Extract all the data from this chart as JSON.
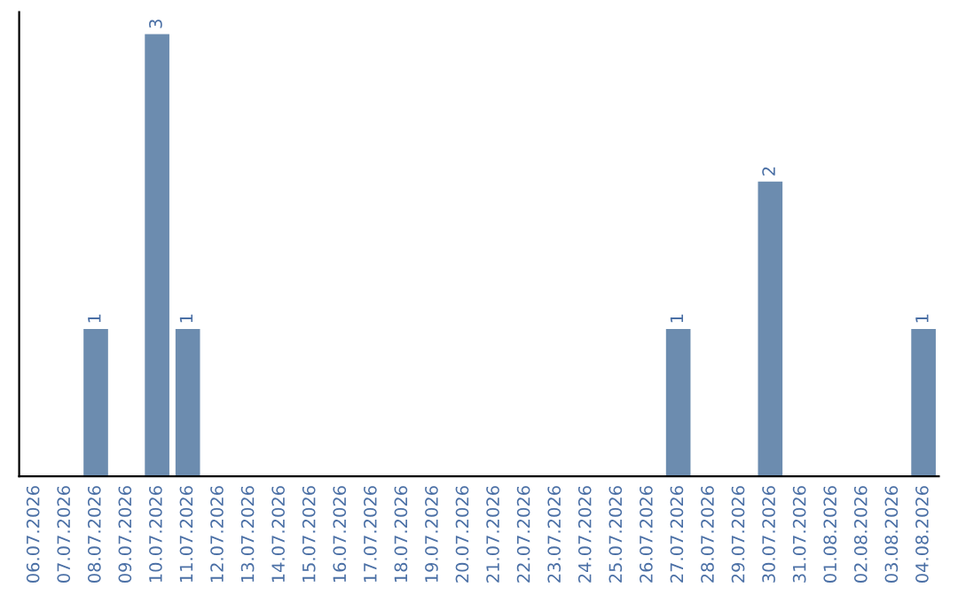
{
  "chart_data": {
    "type": "bar",
    "categories": [
      "06.07.2026",
      "07.07.2026",
      "08.07.2026",
      "09.07.2026",
      "10.07.2026",
      "11.07.2026",
      "12.07.2026",
      "13.07.2026",
      "14.07.2026",
      "15.07.2026",
      "16.07.2026",
      "17.07.2026",
      "18.07.2026",
      "19.07.2026",
      "20.07.2026",
      "21.07.2026",
      "22.07.2026",
      "23.07.2026",
      "24.07.2026",
      "25.07.2026",
      "26.07.2026",
      "27.07.2026",
      "28.07.2026",
      "29.07.2026",
      "30.07.2026",
      "31.07.2026",
      "01.08.2026",
      "02.08.2026",
      "03.08.2026",
      "04.08.2026"
    ],
    "values": [
      0,
      0,
      1,
      0,
      3,
      1,
      0,
      0,
      0,
      0,
      0,
      0,
      0,
      0,
      0,
      0,
      0,
      0,
      0,
      0,
      0,
      1,
      0,
      0,
      2,
      0,
      0,
      0,
      0,
      1
    ],
    "value_labels": [
      null,
      null,
      "1",
      null,
      "3",
      "1",
      null,
      null,
      null,
      null,
      null,
      null,
      null,
      null,
      null,
      null,
      null,
      null,
      null,
      null,
      null,
      "1",
      null,
      null,
      "2",
      null,
      null,
      null,
      null,
      "1"
    ],
    "color": "#6c8caf",
    "tick_labels": "x",
    "grid": false,
    "legend": false
  }
}
